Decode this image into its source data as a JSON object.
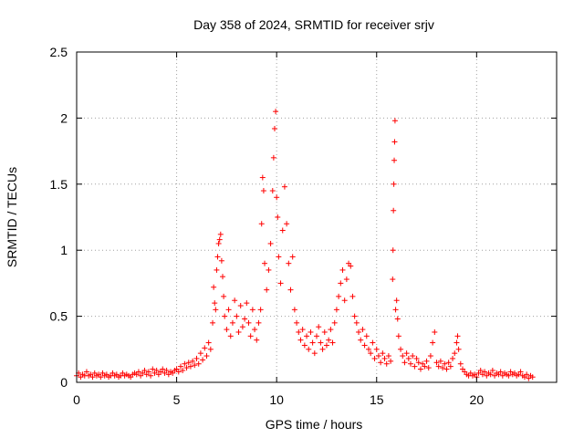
{
  "chart_data": {
    "type": "scatter",
    "title": "Day 358 of 2024, SRMTID for receiver srjv",
    "xlabel": "GPS time / hours",
    "ylabel": "SRMTID / TECUs",
    "xlim": [
      0,
      24
    ],
    "ylim": [
      0,
      2.5
    ],
    "xticks": [
      "0",
      "5",
      "10",
      "15",
      "20"
    ],
    "yticks": [
      "0",
      "0.5",
      "1",
      "1.5",
      "2",
      "2.5"
    ],
    "grid": true,
    "marker": "+",
    "color": "#ff0000",
    "series": [
      {
        "name": "SRMTID",
        "description": "approximate trace read from plot (sampled)",
        "points": [
          [
            0.0,
            0.05
          ],
          [
            0.1,
            0.07
          ],
          [
            0.2,
            0.04
          ],
          [
            0.3,
            0.06
          ],
          [
            0.4,
            0.05
          ],
          [
            0.5,
            0.08
          ],
          [
            0.6,
            0.05
          ],
          [
            0.7,
            0.06
          ],
          [
            0.8,
            0.04
          ],
          [
            0.9,
            0.07
          ],
          [
            1.0,
            0.05
          ],
          [
            1.1,
            0.06
          ],
          [
            1.2,
            0.04
          ],
          [
            1.3,
            0.07
          ],
          [
            1.4,
            0.05
          ],
          [
            1.5,
            0.06
          ],
          [
            1.6,
            0.04
          ],
          [
            1.7,
            0.05
          ],
          [
            1.8,
            0.07
          ],
          [
            1.9,
            0.05
          ],
          [
            2.0,
            0.06
          ],
          [
            2.1,
            0.04
          ],
          [
            2.2,
            0.05
          ],
          [
            2.3,
            0.07
          ],
          [
            2.4,
            0.05
          ],
          [
            2.5,
            0.06
          ],
          [
            2.6,
            0.05
          ],
          [
            2.7,
            0.04
          ],
          [
            2.8,
            0.06
          ],
          [
            2.9,
            0.07
          ],
          [
            3.0,
            0.06
          ],
          [
            3.1,
            0.08
          ],
          [
            3.2,
            0.05
          ],
          [
            3.3,
            0.07
          ],
          [
            3.4,
            0.09
          ],
          [
            3.5,
            0.06
          ],
          [
            3.6,
            0.08
          ],
          [
            3.7,
            0.05
          ],
          [
            3.8,
            0.1
          ],
          [
            3.9,
            0.07
          ],
          [
            4.0,
            0.09
          ],
          [
            4.1,
            0.06
          ],
          [
            4.2,
            0.08
          ],
          [
            4.3,
            0.1
          ],
          [
            4.4,
            0.07
          ],
          [
            4.5,
            0.09
          ],
          [
            4.6,
            0.06
          ],
          [
            4.7,
            0.08
          ],
          [
            4.8,
            0.07
          ],
          [
            4.9,
            0.09
          ],
          [
            5.0,
            0.1
          ],
          [
            5.1,
            0.08
          ],
          [
            5.2,
            0.12
          ],
          [
            5.3,
            0.09
          ],
          [
            5.4,
            0.14
          ],
          [
            5.5,
            0.11
          ],
          [
            5.6,
            0.15
          ],
          [
            5.7,
            0.12
          ],
          [
            5.8,
            0.16
          ],
          [
            5.9,
            0.13
          ],
          [
            6.0,
            0.18
          ],
          [
            6.1,
            0.14
          ],
          [
            6.2,
            0.22
          ],
          [
            6.3,
            0.17
          ],
          [
            6.4,
            0.26
          ],
          [
            6.5,
            0.2
          ],
          [
            6.6,
            0.3
          ],
          [
            6.7,
            0.25
          ],
          [
            6.8,
            0.45
          ],
          [
            6.85,
            0.72
          ],
          [
            6.9,
            0.6
          ],
          [
            6.95,
            0.55
          ],
          [
            7.0,
            0.85
          ],
          [
            7.05,
            0.95
          ],
          [
            7.1,
            1.05
          ],
          [
            7.15,
            1.08
          ],
          [
            7.2,
            1.12
          ],
          [
            7.25,
            0.92
          ],
          [
            7.3,
            0.8
          ],
          [
            7.35,
            0.65
          ],
          [
            7.4,
            0.5
          ],
          [
            7.5,
            0.4
          ],
          [
            7.6,
            0.55
          ],
          [
            7.7,
            0.35
          ],
          [
            7.8,
            0.45
          ],
          [
            7.9,
            0.62
          ],
          [
            8.0,
            0.5
          ],
          [
            8.1,
            0.38
          ],
          [
            8.2,
            0.58
          ],
          [
            8.3,
            0.42
          ],
          [
            8.4,
            0.48
          ],
          [
            8.5,
            0.6
          ],
          [
            8.6,
            0.45
          ],
          [
            8.7,
            0.35
          ],
          [
            8.8,
            0.55
          ],
          [
            8.9,
            0.4
          ],
          [
            9.0,
            0.32
          ],
          [
            9.1,
            0.45
          ],
          [
            9.2,
            0.55
          ],
          [
            9.25,
            1.2
          ],
          [
            9.3,
            1.55
          ],
          [
            9.35,
            1.45
          ],
          [
            9.4,
            0.9
          ],
          [
            9.5,
            0.7
          ],
          [
            9.6,
            0.85
          ],
          [
            9.7,
            1.05
          ],
          [
            9.8,
            1.45
          ],
          [
            9.85,
            1.7
          ],
          [
            9.9,
            1.92
          ],
          [
            9.95,
            2.05
          ],
          [
            10.0,
            1.4
          ],
          [
            10.05,
            1.25
          ],
          [
            10.1,
            0.95
          ],
          [
            10.2,
            0.75
          ],
          [
            10.3,
            1.15
          ],
          [
            10.4,
            1.48
          ],
          [
            10.5,
            1.2
          ],
          [
            10.6,
            0.9
          ],
          [
            10.7,
            0.7
          ],
          [
            10.8,
            0.95
          ],
          [
            10.9,
            0.55
          ],
          [
            11.0,
            0.45
          ],
          [
            11.1,
            0.38
          ],
          [
            11.2,
            0.32
          ],
          [
            11.3,
            0.4
          ],
          [
            11.4,
            0.28
          ],
          [
            11.5,
            0.35
          ],
          [
            11.6,
            0.25
          ],
          [
            11.7,
            0.38
          ],
          [
            11.8,
            0.3
          ],
          [
            11.9,
            0.22
          ],
          [
            12.0,
            0.35
          ],
          [
            12.1,
            0.42
          ],
          [
            12.2,
            0.3
          ],
          [
            12.3,
            0.25
          ],
          [
            12.4,
            0.38
          ],
          [
            12.5,
            0.28
          ],
          [
            12.6,
            0.32
          ],
          [
            12.7,
            0.4
          ],
          [
            12.8,
            0.3
          ],
          [
            12.9,
            0.45
          ],
          [
            13.0,
            0.55
          ],
          [
            13.1,
            0.65
          ],
          [
            13.2,
            0.75
          ],
          [
            13.3,
            0.85
          ],
          [
            13.4,
            0.62
          ],
          [
            13.5,
            0.78
          ],
          [
            13.6,
            0.9
          ],
          [
            13.7,
            0.88
          ],
          [
            13.8,
            0.65
          ],
          [
            13.9,
            0.5
          ],
          [
            14.0,
            0.45
          ],
          [
            14.1,
            0.38
          ],
          [
            14.2,
            0.32
          ],
          [
            14.3,
            0.4
          ],
          [
            14.4,
            0.28
          ],
          [
            14.5,
            0.35
          ],
          [
            14.6,
            0.25
          ],
          [
            14.7,
            0.22
          ],
          [
            14.8,
            0.3
          ],
          [
            14.9,
            0.18
          ],
          [
            15.0,
            0.25
          ],
          [
            15.1,
            0.2
          ],
          [
            15.2,
            0.15
          ],
          [
            15.3,
            0.22
          ],
          [
            15.4,
            0.18
          ],
          [
            15.5,
            0.14
          ],
          [
            15.6,
            0.2
          ],
          [
            15.7,
            0.16
          ],
          [
            15.8,
            0.78
          ],
          [
            15.82,
            1.0
          ],
          [
            15.84,
            1.3
          ],
          [
            15.86,
            1.5
          ],
          [
            15.88,
            1.68
          ],
          [
            15.9,
            1.82
          ],
          [
            15.92,
            1.98
          ],
          [
            15.95,
            0.55
          ],
          [
            16.0,
            0.62
          ],
          [
            16.05,
            0.48
          ],
          [
            16.1,
            0.35
          ],
          [
            16.2,
            0.25
          ],
          [
            16.3,
            0.2
          ],
          [
            16.4,
            0.15
          ],
          [
            16.5,
            0.22
          ],
          [
            16.6,
            0.18
          ],
          [
            16.7,
            0.14
          ],
          [
            16.8,
            0.2
          ],
          [
            16.9,
            0.12
          ],
          [
            17.0,
            0.18
          ],
          [
            17.1,
            0.15
          ],
          [
            17.2,
            0.1
          ],
          [
            17.3,
            0.14
          ],
          [
            17.4,
            0.12
          ],
          [
            17.5,
            0.16
          ],
          [
            17.6,
            0.11
          ],
          [
            17.7,
            0.2
          ],
          [
            17.8,
            0.3
          ],
          [
            17.9,
            0.38
          ],
          [
            18.0,
            0.15
          ],
          [
            18.1,
            0.12
          ],
          [
            18.2,
            0.16
          ],
          [
            18.3,
            0.11
          ],
          [
            18.4,
            0.14
          ],
          [
            18.5,
            0.1
          ],
          [
            18.6,
            0.15
          ],
          [
            18.7,
            0.12
          ],
          [
            18.8,
            0.18
          ],
          [
            18.9,
            0.22
          ],
          [
            19.0,
            0.3
          ],
          [
            19.05,
            0.35
          ],
          [
            19.1,
            0.25
          ],
          [
            19.2,
            0.14
          ],
          [
            19.3,
            0.1
          ],
          [
            19.4,
            0.08
          ],
          [
            19.5,
            0.06
          ],
          [
            19.6,
            0.05
          ],
          [
            19.7,
            0.07
          ],
          [
            19.8,
            0.05
          ],
          [
            19.9,
            0.06
          ],
          [
            20.0,
            0.04
          ],
          [
            20.1,
            0.07
          ],
          [
            20.2,
            0.09
          ],
          [
            20.3,
            0.06
          ],
          [
            20.4,
            0.08
          ],
          [
            20.5,
            0.05
          ],
          [
            20.6,
            0.07
          ],
          [
            20.7,
            0.06
          ],
          [
            20.8,
            0.09
          ],
          [
            20.9,
            0.05
          ],
          [
            21.0,
            0.07
          ],
          [
            21.1,
            0.06
          ],
          [
            21.2,
            0.08
          ],
          [
            21.3,
            0.05
          ],
          [
            21.4,
            0.07
          ],
          [
            21.5,
            0.06
          ],
          [
            21.6,
            0.05
          ],
          [
            21.7,
            0.08
          ],
          [
            21.8,
            0.06
          ],
          [
            21.9,
            0.07
          ],
          [
            22.0,
            0.05
          ],
          [
            22.1,
            0.06
          ],
          [
            22.2,
            0.08
          ],
          [
            22.3,
            0.05
          ],
          [
            22.4,
            0.04
          ],
          [
            22.5,
            0.06
          ],
          [
            22.6,
            0.03
          ],
          [
            22.7,
            0.05
          ],
          [
            22.8,
            0.04
          ]
        ]
      }
    ]
  }
}
